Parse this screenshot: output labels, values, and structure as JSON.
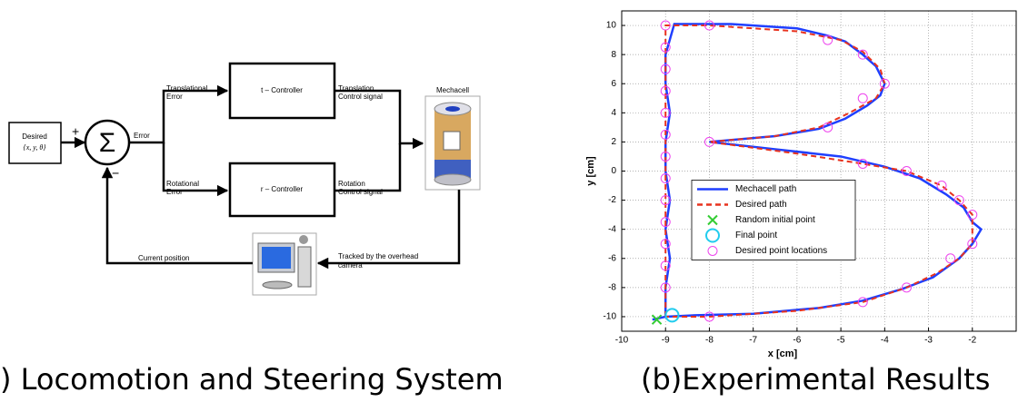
{
  "diagram": {
    "desired": {
      "label": "Desired",
      "vars": "{x, y, θ}"
    },
    "sum": {
      "symbol": "Σ",
      "plus": "+",
      "minus": "−"
    },
    "error": "Error",
    "translational_error": [
      "Translational",
      "Error"
    ],
    "rotational_error": [
      "Rotational",
      "Error"
    ],
    "t_controller": "t – Controller",
    "r_controller": "r – Controller",
    "translation_signal": [
      "Translation",
      "Control signal"
    ],
    "rotation_signal": [
      "Rotation",
      "Control signal"
    ],
    "mechacell": "Mechacell",
    "tracked": [
      "Tracked by the overhead",
      "camera"
    ],
    "current_position": "Current position",
    "caption": ") Locomotion and Steering System"
  },
  "chart_data": {
    "type": "line",
    "caption": "(b)Experimental Results",
    "x_label": "x [cm]",
    "y_label": "y [cm]",
    "xlim": [
      -10,
      -1
    ],
    "ylim": [
      -11,
      11
    ],
    "xticks": [
      -10,
      -9,
      -8,
      -7,
      -6,
      -5,
      -4,
      -3,
      -2
    ],
    "yticks": [
      -10,
      -8,
      -6,
      -4,
      -2,
      0,
      2,
      4,
      6,
      8,
      10
    ],
    "grid": true,
    "legend": "center",
    "series": [
      {
        "name": "Mechacell path",
        "color": "#1f3fff",
        "style": "solid",
        "x": [
          -9.3,
          -9.0,
          -9.0,
          -8.9,
          -9.0,
          -8.9,
          -9.0,
          -9.0,
          -8.9,
          -9.0,
          -9.0,
          -8.8,
          -7.5,
          -6,
          -5.3,
          -4.9,
          -4.5,
          -4.2,
          -4.0,
          -4.1,
          -4.4,
          -4.9,
          -5.5,
          -6.5,
          -8.0,
          -6.5,
          -5,
          -4,
          -3.2,
          -2.6,
          -2.2,
          -2.0,
          -1.8,
          -2.0,
          -2.3,
          -2.9,
          -3.6,
          -4.5,
          -5.5,
          -7,
          -8.3,
          -9.0
        ],
        "values": [
          -10.2,
          -10,
          -8,
          -6,
          -4,
          -2,
          0,
          2,
          4,
          6,
          8,
          10.1,
          10.1,
          9.8,
          9.3,
          8.9,
          8.0,
          7.2,
          6.0,
          5.2,
          4.5,
          3.6,
          2.9,
          2.4,
          2.0,
          1.5,
          1.0,
          0.3,
          -0.5,
          -1.6,
          -2.5,
          -3.5,
          -4.0,
          -5.0,
          -6.0,
          -7.3,
          -8.1,
          -8.9,
          -9.4,
          -9.8,
          -9.9,
          -10
        ]
      },
      {
        "name": "Desired path",
        "color": "#e8321e",
        "style": "dashed",
        "x": [
          -9,
          -9,
          -8,
          -6,
          -5,
          -4.5,
          -4.1,
          -4.0,
          -4.2,
          -4.8,
          -5.5,
          -6.5,
          -8,
          -6,
          -4.5,
          -3.5,
          -2.7,
          -2.3,
          -2.0,
          -2.0,
          -2.3,
          -2.8,
          -3.5,
          -4.5,
          -6,
          -8,
          -9
        ],
        "values": [
          -10,
          10,
          10,
          9.6,
          9,
          8.2,
          7,
          6,
          5,
          4,
          3,
          2.4,
          2,
          1.2,
          0.5,
          0,
          -1,
          -2,
          -3,
          -5,
          -6,
          -7,
          -8,
          -9,
          -9.6,
          -10,
          -10
        ]
      },
      {
        "name": "Random initial point",
        "color": "#33cc33",
        "style": "x",
        "x": [
          -9.2
        ],
        "values": [
          -10.2
        ]
      },
      {
        "name": "Final point",
        "color": "#22ccee",
        "style": "circle-large",
        "x": [
          -8.85
        ],
        "values": [
          -9.9
        ]
      },
      {
        "name": "Desired point locations",
        "color": "#ee44ee",
        "style": "circle",
        "x": [
          -9,
          -9,
          -9,
          -9,
          -9,
          -9,
          -9,
          -9,
          -9,
          -9,
          -9,
          -9,
          -9,
          -8,
          -5.3,
          -4.5,
          -4.0,
          -4.5,
          -5.3,
          -8,
          -4.5,
          -3.5,
          -2.7,
          -2.3,
          -2.0,
          -2.0,
          -2.5,
          -3.5,
          -4.5,
          -8
        ],
        "values": [
          10,
          8.5,
          7,
          5.5,
          4,
          2.5,
          1,
          -0.5,
          -2,
          -3.5,
          -5,
          -6.5,
          -8,
          10,
          9,
          8,
          6,
          5,
          3,
          2,
          0.5,
          0,
          -1,
          -2,
          -3,
          -5,
          -6,
          -8,
          -9,
          -10
        ]
      }
    ]
  }
}
